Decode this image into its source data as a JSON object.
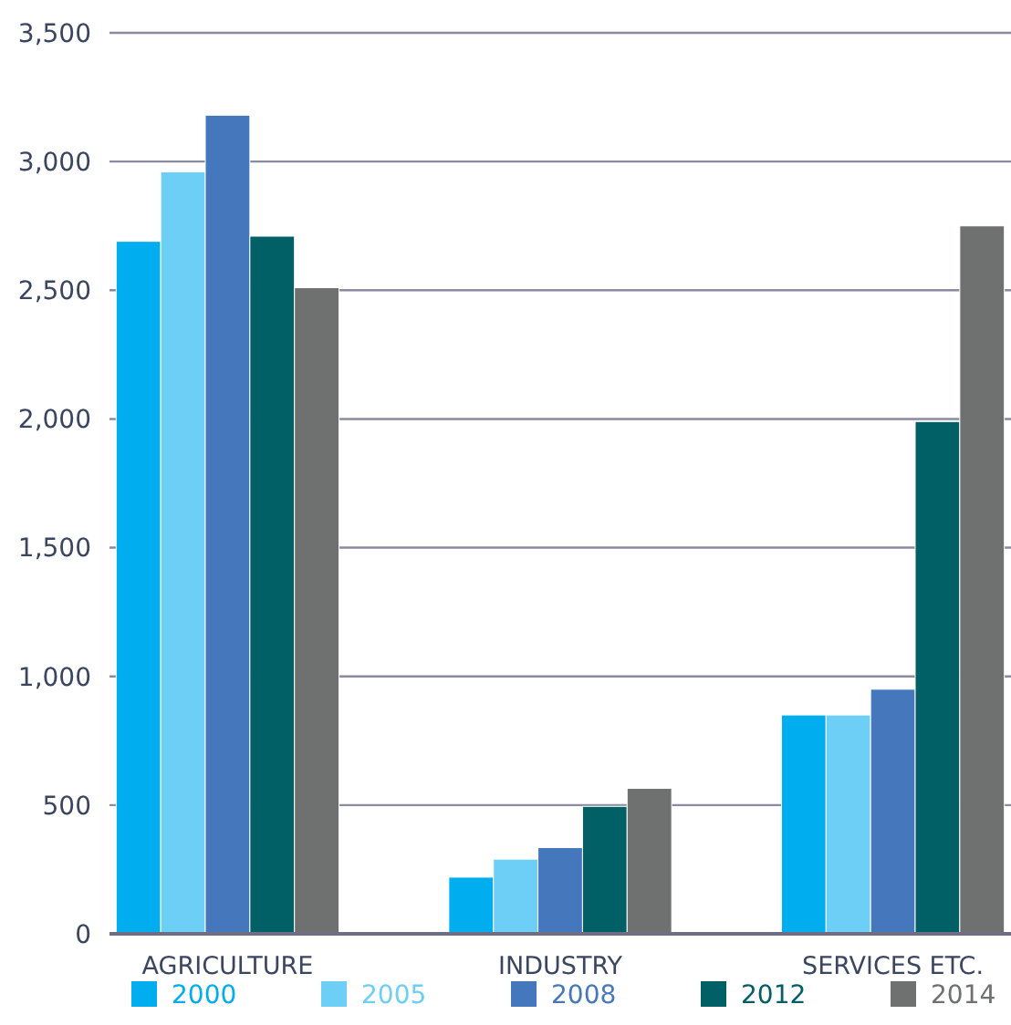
{
  "chart_data": {
    "type": "bar",
    "categories": [
      "AGRICULTURE",
      "INDUSTRY",
      "SERVICES ETC."
    ],
    "series": [
      {
        "name": "2000",
        "color": "#00aeef",
        "values": [
          2690,
          220,
          850
        ]
      },
      {
        "name": "2005",
        "color": "#6dcff6",
        "values": [
          2960,
          290,
          850
        ]
      },
      {
        "name": "2008",
        "color": "#4577bc",
        "values": [
          3180,
          335,
          950
        ]
      },
      {
        "name": "2012",
        "color": "#006066",
        "values": [
          2710,
          495,
          1990
        ]
      },
      {
        "name": "2014",
        "color": "#6f7170",
        "values": [
          2510,
          565,
          2750
        ]
      }
    ],
    "ylim": [
      0,
      3500
    ],
    "yticks": [
      0,
      {
        "value": 500,
        "label": "500"
      },
      {
        "value": 1000,
        "label": "1,000"
      },
      {
        "value": 1500,
        "label": "1,500"
      },
      {
        "value": 2000,
        "label": "2,000"
      },
      {
        "value": 2500,
        "label": "2,500"
      },
      {
        "value": 3000,
        "label": "3,000"
      },
      {
        "value": 3500,
        "label": "3,500"
      }
    ],
    "grid": "y",
    "legend": "bottom"
  }
}
